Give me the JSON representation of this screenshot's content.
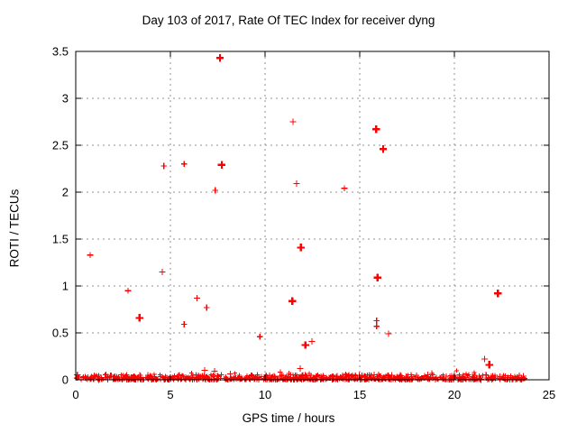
{
  "chart_data": {
    "type": "scatter",
    "title": "Day 103 of 2017, Rate Of TEC Index for receiver dyng",
    "xlabel": "GPS time / hours",
    "ylabel": "ROTI / TECUs",
    "xlim": [
      0,
      25
    ],
    "ylim": [
      0,
      3.5
    ],
    "x_ticks": [
      0,
      5,
      10,
      15,
      20,
      25
    ],
    "x_tick_labels": [
      "0",
      "5",
      "10",
      "15",
      "20",
      "25"
    ],
    "y_ticks": [
      0,
      0.5,
      1,
      1.5,
      2,
      2.5,
      3,
      3.5
    ],
    "y_tick_labels": [
      "0",
      "0.5",
      "1",
      "1.5",
      "2",
      "2.5",
      "3",
      "3.5"
    ],
    "grid": true,
    "legend": "none",
    "marker": "plus",
    "series": [
      {
        "name": "ROTI",
        "color": "#ff0000",
        "outlier_points": [
          {
            "x": 0.76,
            "y": 1.33,
            "bold": false
          },
          {
            "x": 2.76,
            "y": 0.95,
            "bold": false
          },
          {
            "x": 3.36,
            "y": 0.66,
            "bold": true
          },
          {
            "x": 4.57,
            "y": 1.15,
            "bold": false
          },
          {
            "x": 4.65,
            "y": 2.28,
            "bold": false
          },
          {
            "x": 5.73,
            "y": 2.3,
            "bold": false
          },
          {
            "x": 5.73,
            "y": 0.59,
            "bold": false
          },
          {
            "x": 6.41,
            "y": 0.87,
            "bold": false
          },
          {
            "x": 6.81,
            "y": 0.1,
            "bold": false
          },
          {
            "x": 6.92,
            "y": 0.77,
            "bold": false
          },
          {
            "x": 7.33,
            "y": 0.09,
            "bold": false
          },
          {
            "x": 7.37,
            "y": 2.02,
            "bold": false
          },
          {
            "x": 7.62,
            "y": 3.43,
            "bold": true
          },
          {
            "x": 7.71,
            "y": 2.29,
            "bold": true
          },
          {
            "x": 9.73,
            "y": 0.46,
            "bold": false
          },
          {
            "x": 11.44,
            "y": 0.84,
            "bold": true
          },
          {
            "x": 11.48,
            "y": 2.75,
            "bold": false
          },
          {
            "x": 11.67,
            "y": 2.09,
            "bold": false
          },
          {
            "x": 11.86,
            "y": 0.12,
            "bold": false
          },
          {
            "x": 11.89,
            "y": 1.41,
            "bold": true
          },
          {
            "x": 12.13,
            "y": 0.37,
            "bold": true
          },
          {
            "x": 12.48,
            "y": 0.41,
            "bold": false
          },
          {
            "x": 14.19,
            "y": 2.04,
            "bold": false
          },
          {
            "x": 15.86,
            "y": 2.67,
            "bold": true
          },
          {
            "x": 15.89,
            "y": 0.63,
            "bold": false
          },
          {
            "x": 15.89,
            "y": 0.57,
            "bold": false
          },
          {
            "x": 15.94,
            "y": 1.09,
            "bold": true
          },
          {
            "x": 16.24,
            "y": 2.46,
            "bold": true
          },
          {
            "x": 16.52,
            "y": 0.49,
            "bold": false
          },
          {
            "x": 21.59,
            "y": 0.22,
            "bold": false
          },
          {
            "x": 21.84,
            "y": 0.16,
            "bold": true
          },
          {
            "x": 22.3,
            "y": 0.92,
            "bold": true
          }
        ],
        "baseline_band": {
          "description": "dense cluster of near-zero ROTI values covering the whole day",
          "x_min": 0,
          "x_max": 23.8,
          "y_min": 0,
          "y_max": 0.12,
          "approx_marker_count": 850
        }
      }
    ]
  },
  "colors": {
    "background": "#ffffff",
    "marker": "#ff0000",
    "grid": "#909090",
    "axis": "#000000",
    "text": "#000000"
  }
}
